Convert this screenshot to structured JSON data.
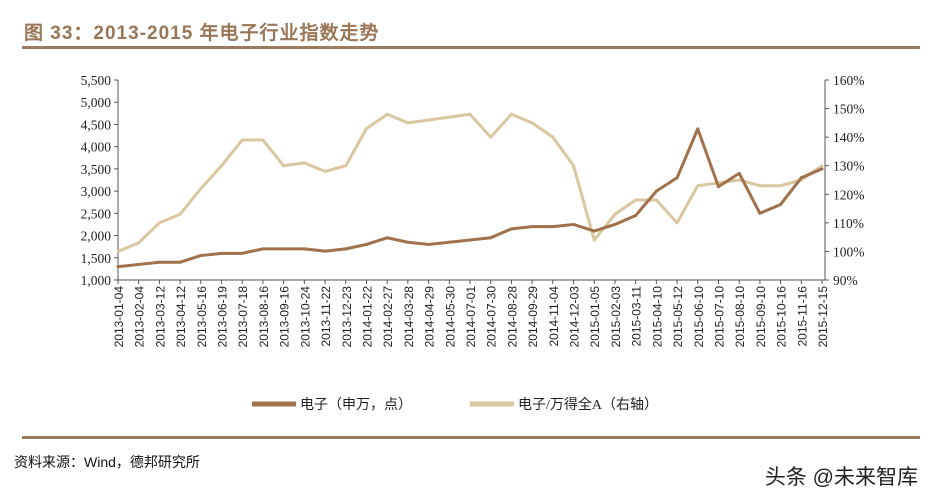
{
  "title": "图 33：2013-2015 年电子行业指数走势",
  "source": "资料来源：Wind，德邦研究所",
  "watermark": "头条 @未来智库",
  "colors": {
    "title": "#9a7656",
    "rule": "#9c7b5e",
    "index": "#a0714a",
    "ratio": "#d9c7a0"
  },
  "chart_data": {
    "type": "line",
    "title": "",
    "x": [
      "2013-01-04",
      "2013-02-04",
      "2013-03-12",
      "2013-04-12",
      "2013-05-16",
      "2013-06-19",
      "2013-07-18",
      "2013-08-16",
      "2013-09-16",
      "2013-10-24",
      "2013-11-22",
      "2013-12-23",
      "2014-01-22",
      "2014-02-27",
      "2014-03-28",
      "2014-04-29",
      "2014-05-30",
      "2014-07-01",
      "2014-07-30",
      "2014-08-28",
      "2014-09-29",
      "2014-11-04",
      "2014-12-03",
      "2015-01-05",
      "2015-02-03",
      "2015-03-11",
      "2015-04-10",
      "2015-05-12",
      "2015-06-10",
      "2015-07-10",
      "2015-08-10",
      "2015-09-10",
      "2015-10-16",
      "2015-11-16",
      "2015-12-15"
    ],
    "y_left": {
      "ylim": [
        1000,
        5500
      ],
      "ticks": [
        "1,000",
        "1,500",
        "2,000",
        "2,500",
        "3,000",
        "3,500",
        "4,000",
        "4,500",
        "5,000",
        "5,500"
      ]
    },
    "y_right": {
      "ylim": [
        90,
        160
      ],
      "ticks": [
        "90%",
        "100%",
        "110%",
        "120%",
        "130%",
        "140%",
        "150%",
        "160%"
      ]
    },
    "grid": false,
    "legend_position": "bottom",
    "series": [
      {
        "name": "电子（申万，点）",
        "axis": "left",
        "values": [
          1300,
          1350,
          1400,
          1400,
          1550,
          1600,
          1600,
          1700,
          1700,
          1700,
          1650,
          1700,
          1800,
          1950,
          1850,
          1800,
          1850,
          1900,
          1950,
          2150,
          2200,
          2200,
          2250,
          2100,
          2250,
          2450,
          3000,
          3300,
          4400,
          3100,
          3400,
          2500,
          2700,
          3300,
          3500
        ]
      },
      {
        "name": "电子/万得全A（右轴）",
        "axis": "right",
        "values": [
          100,
          103,
          110,
          113,
          122,
          130,
          139,
          139,
          130,
          131,
          128,
          130,
          143,
          148,
          145,
          146,
          147,
          148,
          140,
          148,
          145,
          140,
          130,
          104,
          113,
          118,
          118,
          110,
          123,
          124,
          125,
          123,
          123,
          125,
          130
        ]
      }
    ]
  }
}
